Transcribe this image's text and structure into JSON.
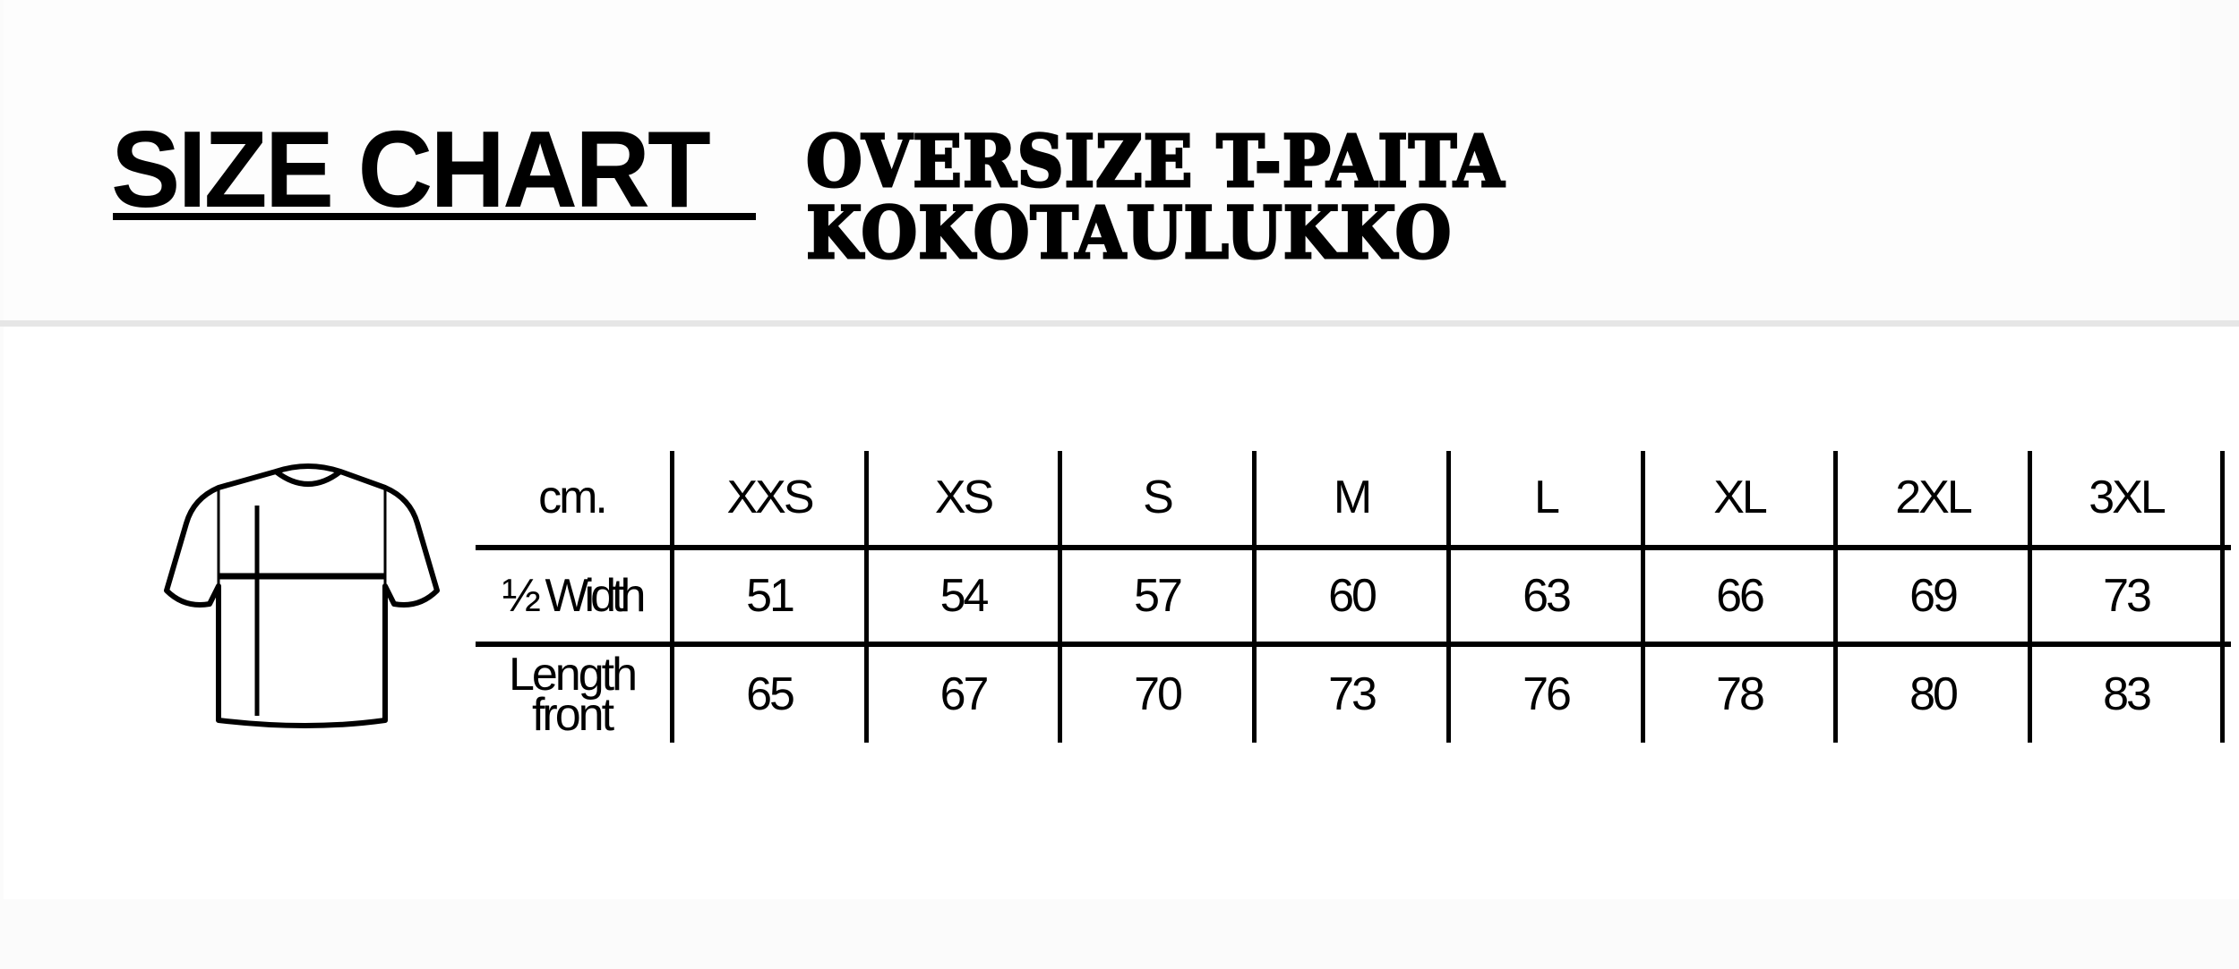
{
  "header": {
    "title": "SIZE CHART",
    "subtitle": "OVERSIZE T-PAITA KOKOTAULUKKO"
  },
  "illustration": {
    "icon": "t-shirt-icon"
  },
  "table": {
    "unit_label": "cm.",
    "sizes": [
      "XXS",
      "XS",
      "S",
      "M",
      "L",
      "XL",
      "2XL",
      "3XL"
    ],
    "rows": [
      {
        "label": "½ Width",
        "values": [
          "51",
          "54",
          "57",
          "60",
          "63",
          "66",
          "69",
          "73"
        ]
      },
      {
        "label_line1": "Length",
        "label_line2": "front",
        "values": [
          "65",
          "67",
          "70",
          "73",
          "76",
          "78",
          "80",
          "83"
        ]
      }
    ]
  }
}
